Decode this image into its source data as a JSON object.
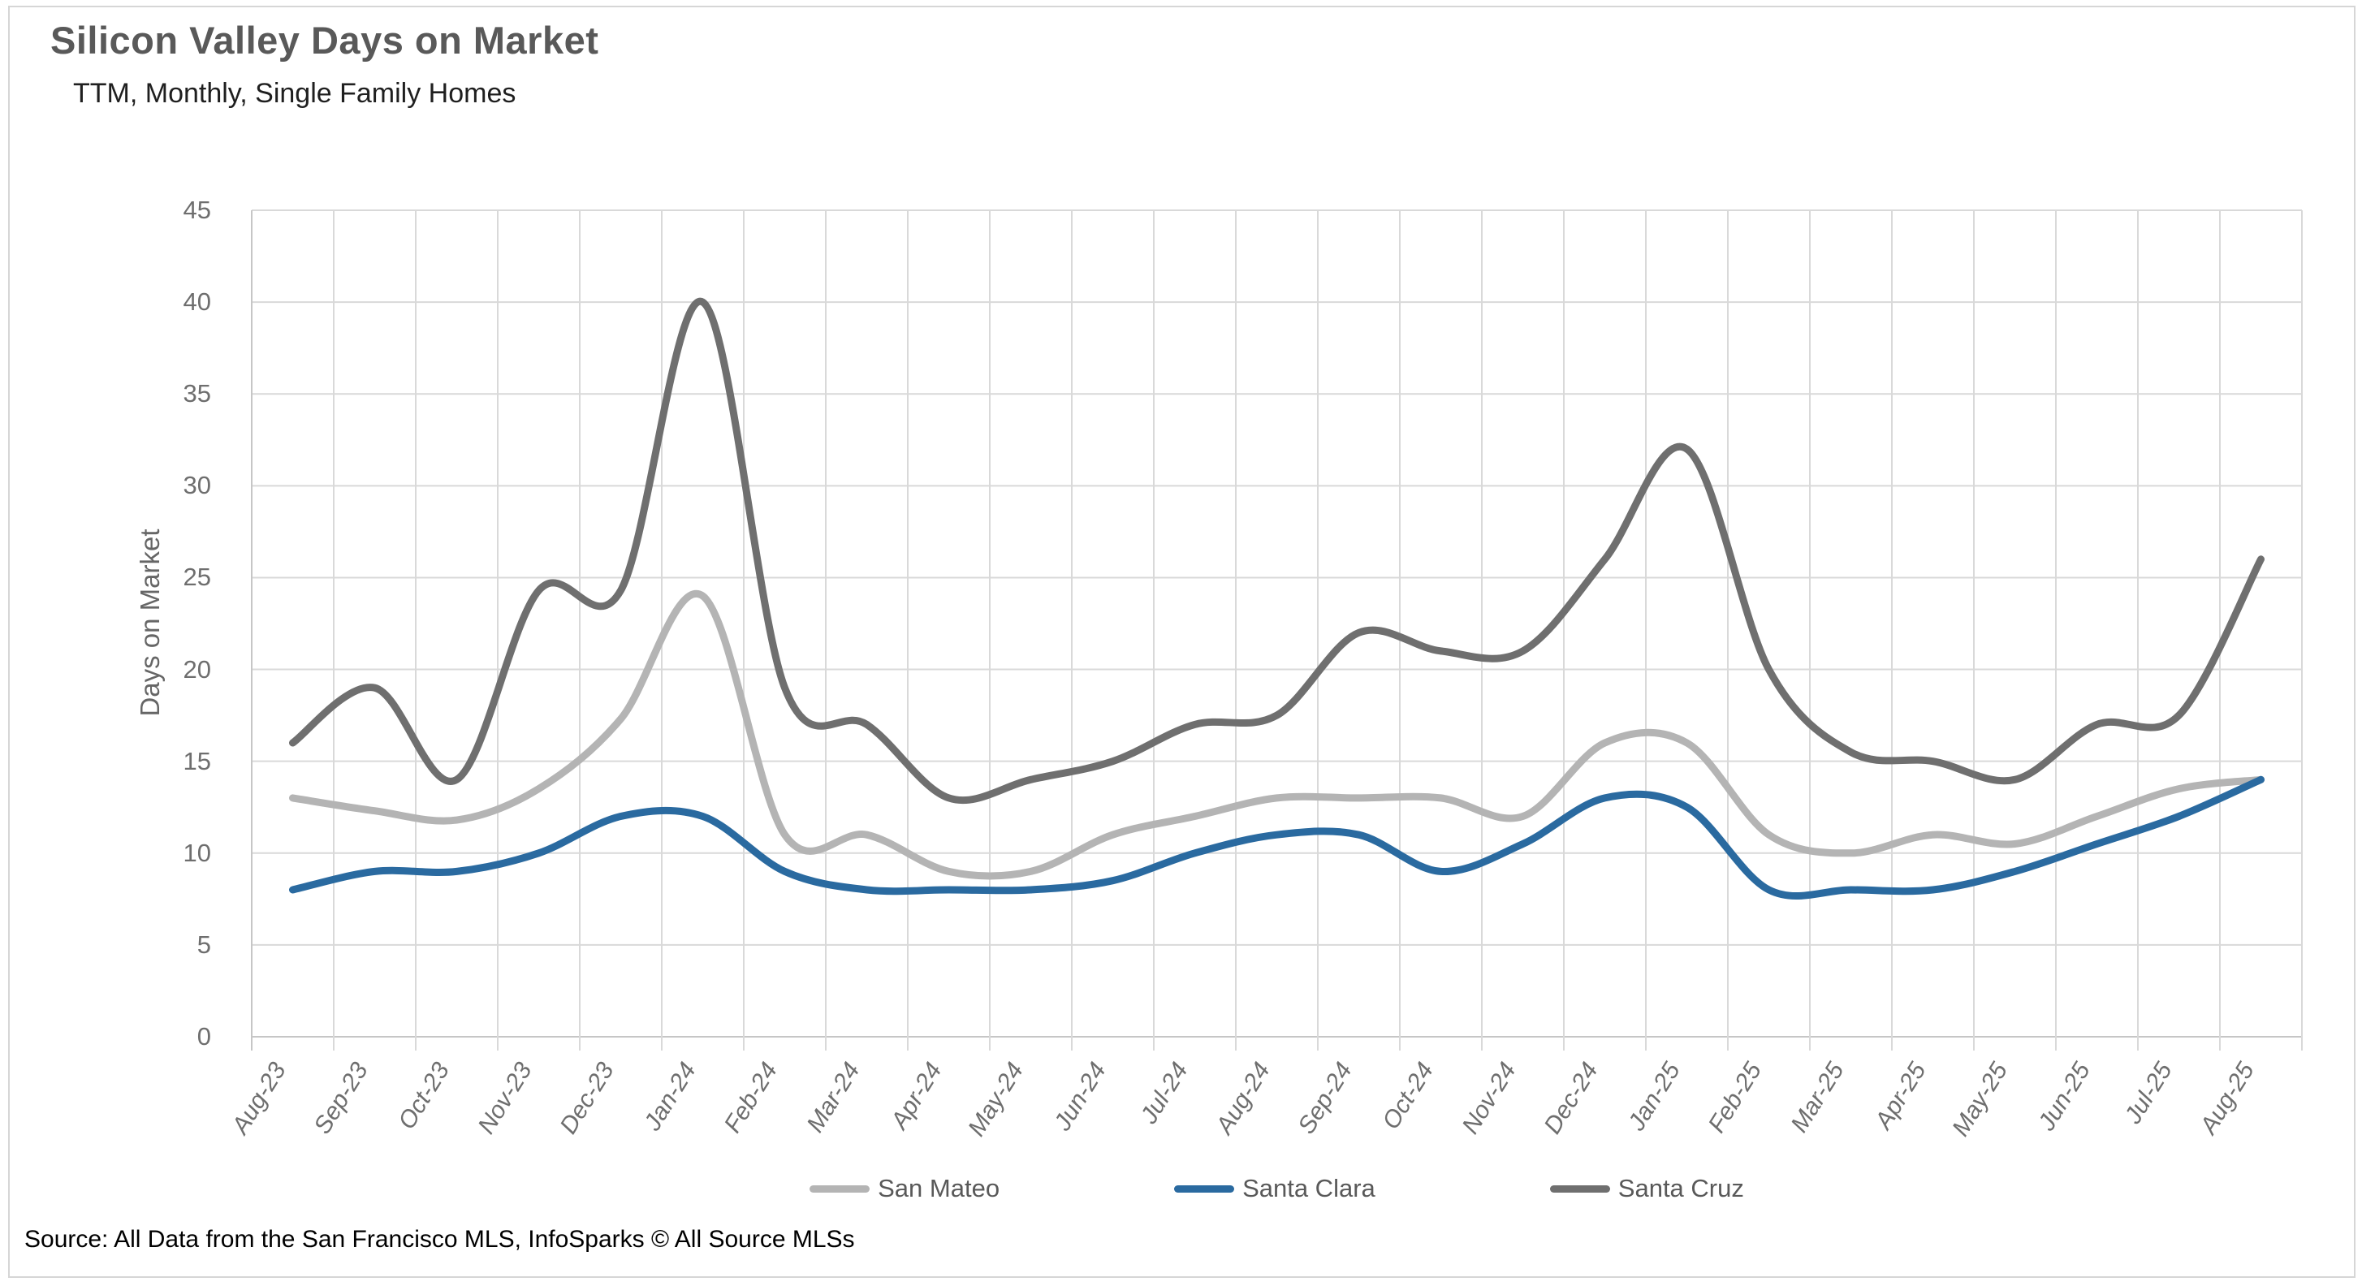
{
  "header": {
    "title": "Silicon Valley Days on Market",
    "subtitle": "TTM, Monthly, Single Family Homes"
  },
  "chart_data": {
    "type": "line",
    "title": "Silicon Valley Days on Market",
    "subtitle": "TTM, Monthly, Single Family Homes",
    "xlabel": "",
    "ylabel": "Days on Market",
    "ylim": [
      0,
      45
    ],
    "ytick_step": 5,
    "grid": true,
    "legend_position": "bottom",
    "categories": [
      "Aug-23",
      "Sep-23",
      "Oct-23",
      "Nov-23",
      "Dec-23",
      "Jan-24",
      "Feb-24",
      "Mar-24",
      "Apr-24",
      "May-24",
      "Jun-24",
      "Jul-24",
      "Aug-24",
      "Sep-24",
      "Oct-24",
      "Nov-24",
      "Dec-24",
      "Jan-25",
      "Feb-25",
      "Mar-25",
      "Apr-25",
      "May-25",
      "Jun-25",
      "Jul-25",
      "Aug-25"
    ],
    "series": [
      {
        "name": "San Mateo",
        "color": "#b4b4b4",
        "values": [
          13,
          12.3,
          11.8,
          13.5,
          17.3,
          24,
          11,
          11,
          9,
          9,
          11,
          12,
          13,
          13,
          13,
          12,
          16,
          16,
          11,
          10,
          11,
          10.5,
          12,
          13.5,
          14
        ]
      },
      {
        "name": "Santa Clara",
        "color": "#2a6aa0",
        "values": [
          8,
          9,
          9,
          10,
          12,
          12,
          9,
          8,
          8,
          8,
          8.5,
          10,
          11,
          11,
          9,
          10.5,
          13,
          12.5,
          8,
          8,
          8,
          9,
          10.5,
          12,
          14
        ]
      },
      {
        "name": "Santa Cruz",
        "color": "#6f6f6f",
        "values": [
          16,
          19,
          14,
          24.3,
          24.3,
          40,
          19,
          17,
          13,
          14,
          15,
          17,
          17.5,
          22,
          21,
          21,
          26,
          32,
          20,
          15.5,
          15,
          14,
          17,
          17.5,
          26
        ]
      }
    ]
  },
  "source": {
    "text": "Source: All Data from the San Francisco MLS, InfoSparks © All Source MLSs"
  },
  "style": {
    "gridline_color": "#d9d9d9",
    "axis_color": "#c6c6c6",
    "title_color": "#595959",
    "tick_color": "#6e6e6e"
  }
}
